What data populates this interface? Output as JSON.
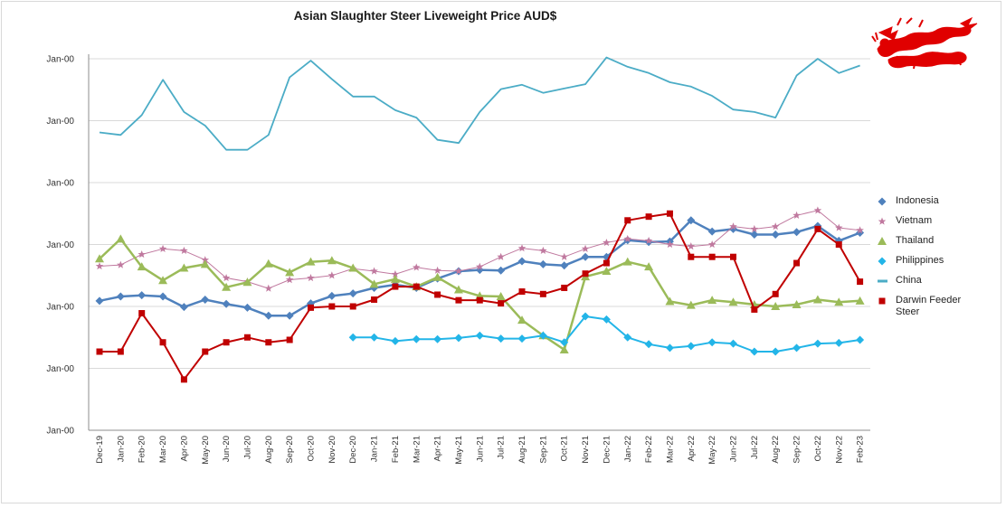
{
  "chart_data": {
    "type": "line",
    "title": "Asian Slaughter Steer Liveweight Price AUD$",
    "xlabel": "",
    "ylabel": "",
    "y_tick_labels": [
      "Jan-00",
      "Jan-00",
      "Jan-00",
      "Jan-00",
      "Jan-00",
      "Jan-00",
      "Jan-00"
    ],
    "ylim": [
      0,
      6
    ],
    "categories": [
      "Dec-19",
      "Jan-20",
      "Feb-20",
      "Mar-20",
      "Apr-20",
      "May-20",
      "Jun-20",
      "Jul-20",
      "Aug-20",
      "Sep-20",
      "Oct-20",
      "Nov-20",
      "Dec-20",
      "Jan-21",
      "Feb-21",
      "Mar-21",
      "Apr-21",
      "May-21",
      "Jun-21",
      "Jul-21",
      "Aug-21",
      "Sep-21",
      "Oct-21",
      "Nov-21",
      "Dec-21",
      "Jan-22",
      "Feb-22",
      "Mar-22",
      "Apr-22",
      "May-22",
      "Jun-22",
      "Jul-22",
      "Aug-22",
      "Sep-22",
      "Oct-22",
      "Nov-22",
      "Feb-23"
    ],
    "series": [
      {
        "name": "Indonesia",
        "color": "#4f81bd",
        "marker": "diamond",
        "values": [
          2.09,
          2.16,
          2.18,
          2.16,
          1.99,
          2.11,
          2.04,
          1.98,
          1.85,
          1.85,
          2.05,
          2.17,
          2.21,
          2.3,
          2.35,
          2.3,
          2.45,
          2.57,
          2.59,
          2.58,
          2.73,
          2.68,
          2.66,
          2.8,
          2.8,
          3.07,
          3.04,
          3.05,
          3.39,
          3.21,
          3.25,
          3.16,
          3.16,
          3.2,
          3.3,
          3.06,
          3.19
        ]
      },
      {
        "name": "Vietnam",
        "color": "#c0799f",
        "marker": "star",
        "values": [
          2.65,
          2.67,
          2.84,
          2.93,
          2.9,
          2.75,
          2.46,
          2.4,
          2.29,
          2.43,
          2.46,
          2.5,
          2.61,
          2.57,
          2.52,
          2.63,
          2.58,
          2.57,
          2.64,
          2.8,
          2.94,
          2.9,
          2.8,
          2.93,
          3.03,
          3.09,
          3.06,
          3.0,
          2.97,
          3.0,
          3.29,
          3.25,
          3.29,
          3.47,
          3.55,
          3.27,
          3.23
        ]
      },
      {
        "name": "Thailand",
        "color": "#9bbb59",
        "marker": "triangle",
        "values": [
          2.77,
          3.09,
          2.64,
          2.42,
          2.62,
          2.68,
          2.31,
          2.39,
          2.69,
          2.55,
          2.72,
          2.74,
          2.62,
          2.36,
          2.44,
          2.32,
          2.47,
          2.27,
          2.17,
          2.16,
          1.78,
          1.53,
          1.3,
          2.48,
          2.57,
          2.72,
          2.64,
          2.08,
          2.02,
          2.1,
          2.07,
          2.03,
          2.0,
          2.03,
          2.11,
          2.07,
          2.09
        ]
      },
      {
        "name": "Philippines",
        "color": "#23b5e8",
        "marker": "diamond",
        "values": [
          null,
          null,
          null,
          null,
          null,
          null,
          null,
          null,
          null,
          null,
          null,
          null,
          1.5,
          1.5,
          1.44,
          1.47,
          1.47,
          1.49,
          1.53,
          1.48,
          1.48,
          1.53,
          1.42,
          1.84,
          1.79,
          1.5,
          1.39,
          1.33,
          1.36,
          1.42,
          1.4,
          1.27,
          1.27,
          1.33,
          1.4,
          1.41,
          1.46
        ]
      },
      {
        "name": "China",
        "color": "#4bacc6",
        "marker": "none",
        "values": [
          4.81,
          4.77,
          5.09,
          5.66,
          5.14,
          4.92,
          4.53,
          4.53,
          4.77,
          5.7,
          5.97,
          5.67,
          5.39,
          5.39,
          5.17,
          5.05,
          4.69,
          4.64,
          5.14,
          5.51,
          5.58,
          5.45,
          5.52,
          5.59,
          6.02,
          5.87,
          5.77,
          5.62,
          5.55,
          5.4,
          5.18,
          5.14,
          5.05,
          5.73,
          6.0,
          5.77,
          5.89
        ]
      },
      {
        "name": "Darwin Feeder Steer",
        "color": "#c00000",
        "marker": "square",
        "values": [
          1.27,
          1.27,
          1.89,
          1.42,
          0.82,
          1.27,
          1.42,
          1.5,
          1.42,
          1.46,
          1.98,
          2.0,
          2.0,
          2.11,
          2.32,
          2.32,
          2.19,
          2.1,
          2.1,
          2.05,
          2.24,
          2.2,
          2.3,
          2.53,
          2.7,
          3.39,
          3.45,
          3.5,
          2.8,
          2.8,
          2.8,
          1.95,
          2.2,
          2.7,
          3.25,
          3.0,
          2.4
        ]
      }
    ]
  },
  "legend": {
    "items": [
      {
        "label": "Indonesia"
      },
      {
        "label": "Vietnam"
      },
      {
        "label": "Thailand"
      },
      {
        "label": "Philippines"
      },
      {
        "label": "China"
      },
      {
        "label": "Darwin Feeder Steer"
      }
    ]
  },
  "logo": {
    "description_icon": "dragon-icon",
    "color": "#e00000"
  }
}
